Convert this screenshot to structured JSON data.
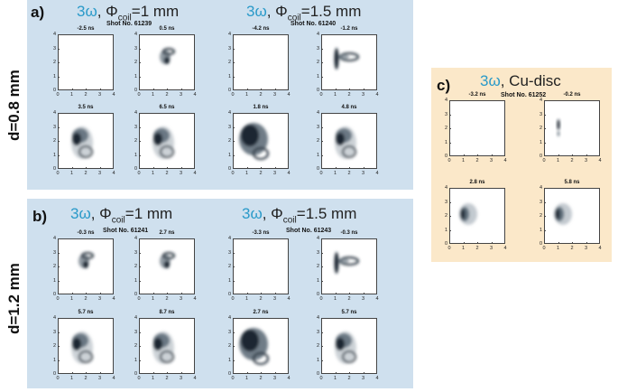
{
  "row_labels": [
    "d=0.8 mm",
    "d=1.2 mm"
  ],
  "panels": {
    "a": {
      "letter": "a)",
      "groups": [
        {
          "omega": "3ω",
          "coil_prefix": ", Φ",
          "coil_sub": "coil",
          "coil_value": "=1 mm",
          "shot": "Shot No. 61239",
          "times": [
            "-2.5 ns",
            "0.5 ns",
            "3.5 ns",
            "6.5 ns"
          ]
        },
        {
          "omega": "3ω",
          "coil_prefix": ", Φ",
          "coil_sub": "coil",
          "coil_value": "=1.5 mm",
          "shot": "Shot No. 61240",
          "times": [
            "-4.2 ns",
            "-1.2 ns",
            "1.8 ns",
            "4.8 ns"
          ]
        }
      ]
    },
    "b": {
      "letter": "b)",
      "groups": [
        {
          "omega": "3ω",
          "coil_prefix": ", Φ",
          "coil_sub": "coil",
          "coil_value": "=1 mm",
          "shot": "Shot No. 61241",
          "times": [
            "-0.3 ns",
            "2.7 ns",
            "5.7 ns",
            "8.7 ns"
          ]
        },
        {
          "omega": "3ω",
          "coil_prefix": ", Φ",
          "coil_sub": "coil",
          "coil_value": "=1.5 mm",
          "shot": "Shot No. 61243",
          "times": [
            "-3.3 ns",
            "-0.3 ns",
            "2.7 ns",
            "5.7 ns"
          ]
        }
      ]
    },
    "c": {
      "letter": "c)",
      "omega": "3ω",
      "title_rest": ", Cu-disc",
      "shot": "Shot No. 61252",
      "times": [
        "-3.2 ns",
        "-0.2 ns",
        "2.8 ns",
        "5.8 ns"
      ]
    }
  },
  "axis": {
    "x_ticks": [
      "0",
      "1",
      "2",
      "3",
      "4"
    ],
    "y_ticks": [
      "4",
      "3",
      "2",
      "1",
      "0"
    ],
    "range": [
      0,
      4
    ]
  },
  "colors": {
    "omega": "#2a9ac9",
    "panel_blue": "#cfe0ee",
    "panel_orange": "#fbe8c9"
  }
}
